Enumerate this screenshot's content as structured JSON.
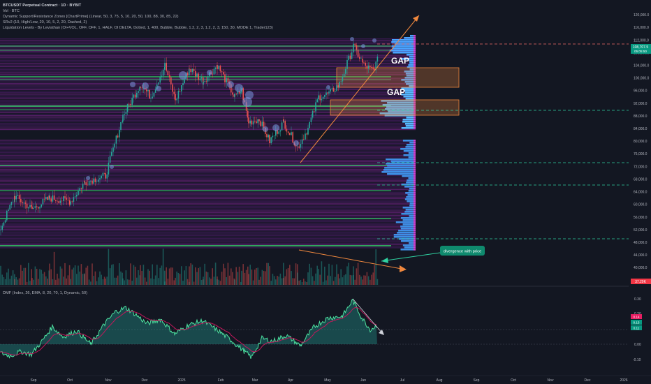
{
  "header": {
    "symbol_line": "BTCUSDT Perpetual Contract · 1D · BYBIT",
    "vol_line": "Vol · BTC",
    "indicator_1": "Dynamic Support/Resistance Zones [ChartPrime] (Linear, 50, 3, 75, 5, 10, 20, 50, 100, 88, 30, 85, 22)",
    "indicator_2": "SRv2 (10, High/Low, 20, 10, 5, 2, 20, Dashed, 2)",
    "indicator_3": "Liquidation Levels - By Leviathan (OI+VOL, OFF, OFF, 1, HALF, OI DELTA, Dotted, 1, 400, Bubble, Bubble, 1.2, 2, 3, 1.2, 2, 3, 150, 30, MODE 1, Trader123)"
  },
  "dmf": {
    "legend": "DMF (Index, 26, EMA, 8, 20, 70, 1, Dynamic, 50)",
    "axis": [
      "0.30",
      "0.20",
      "0.10",
      "0.00",
      "-0.10"
    ],
    "badges": [
      "0.14",
      "0.13",
      "0.11"
    ]
  },
  "price_axis": {
    "labels": [
      "120,000.0",
      "116,000.0",
      "112,000.0",
      "108,000.0",
      "104,000.0",
      "100,000.0",
      "96,000.0",
      "92,000.0",
      "88,000.0",
      "84,000.0",
      "80,000.0",
      "76,000.0",
      "72,000.0",
      "68,000.0",
      "64,000.0",
      "60,000.0",
      "56,000.0",
      "52,000.0",
      "48,000.0",
      "44,000.0",
      "40,000.0"
    ],
    "current_price": "108,707.5",
    "current_sub": "05:05:50",
    "volume_badge": "37.29K"
  },
  "time_axis": {
    "labels": [
      "Sep",
      "Oct",
      "Nov",
      "Dec",
      "2025",
      "Feb",
      "Mar",
      "Apr",
      "May",
      "Jun",
      "Jul",
      "Aug",
      "Sep",
      "Oct",
      "Nov",
      "Dec",
      "2026"
    ]
  },
  "annotations": {
    "gap_1": "GAP",
    "gap_2": "GAP",
    "divergence_note": "divergence with price"
  },
  "colors": {
    "background": "#131722",
    "up_candle": "#26a69a",
    "down_candle": "#ef5350",
    "zone_green": "#33d46a",
    "band_purple": "#7b2a8c",
    "profile_blue": "#4aa3ff",
    "trendline": "#f0883e",
    "dashed_red": "#f0696a",
    "dashed_green": "#2fd0a0",
    "note_bg": "#0f8a6e"
  },
  "chart_data": {
    "type": "candlestick",
    "approximate_closes": [
      {
        "t": "Aug 2024",
        "price": 59000
      },
      {
        "t": "Sep 2024",
        "price": 63500
      },
      {
        "t": "Oct 2024",
        "price": 67500
      },
      {
        "t": "Nov 2024",
        "price": 96000
      },
      {
        "t": "Dec 2024",
        "price": 94000
      },
      {
        "t": "Jan 2025",
        "price": 102000
      },
      {
        "t": "Feb 2025",
        "price": 84500
      },
      {
        "t": "Mar 2025",
        "price": 82500
      },
      {
        "t": "Apr 2025",
        "price": 94000
      },
      {
        "t": "May 2025",
        "price": 104500
      },
      {
        "t": "Jun 2025",
        "price": 108700
      }
    ],
    "ylim": [
      38000,
      122000
    ],
    "dmf_ylim": [
      -0.14,
      0.33
    ]
  }
}
